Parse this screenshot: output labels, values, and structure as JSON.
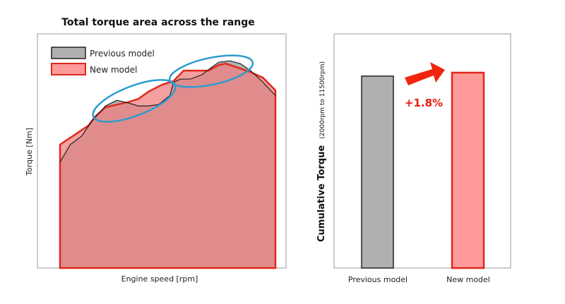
{
  "chart_data": [
    {
      "type": "area",
      "title": "Total torque area across the range",
      "xlabel": "Engine speed [rpm]",
      "ylabel": "Torque [Nm]",
      "xlim": [
        2000,
        11500
      ],
      "ylim": [
        0,
        100
      ],
      "grid": false,
      "legend_position": "top-left",
      "series": [
        {
          "name": "Previous model",
          "color": "#b0b0b0",
          "stroke": "#222222",
          "x": [
            2000,
            2450,
            2950,
            3400,
            4000,
            4500,
            4950,
            5450,
            5900,
            6350,
            6850,
            7000,
            7300,
            7750,
            8250,
            8700,
            9000,
            9500,
            9950,
            10400,
            10900,
            11500
          ],
          "y": [
            45.2,
            52.7,
            56.3,
            62.6,
            69.2,
            71.6,
            70.7,
            69.2,
            69.2,
            69.8,
            73.7,
            79.2,
            80.7,
            80.7,
            82.5,
            85.8,
            87.9,
            88.5,
            87.3,
            84.3,
            79.8,
            73.7
          ]
        },
        {
          "name": "New model",
          "color": "#f08080",
          "stroke": "#e0281c",
          "x": [
            2000,
            2550,
            3250,
            3550,
            4000,
            4500,
            4950,
            5450,
            5900,
            6500,
            7000,
            7450,
            8050,
            8550,
            9000,
            9300,
            9950,
            10400,
            10950,
            11500
          ],
          "y": [
            52.7,
            56.3,
            60.8,
            64.7,
            68.6,
            69.8,
            70.7,
            72.2,
            75.3,
            78.3,
            79.8,
            84.3,
            84.3,
            84.3,
            86.7,
            87.3,
            85.2,
            83.7,
            81.3,
            75.9
          ]
        }
      ],
      "annotations": [
        "highlight ellipse low-mid range",
        "highlight ellipse high range"
      ]
    },
    {
      "type": "bar",
      "ylabel": "Cumulative Torque",
      "ylabel_note": "(2000rpm to 11500rpm)",
      "categories": [
        "Previous model",
        "New model"
      ],
      "values": [
        100,
        101.8
      ],
      "colors": [
        "#b0b0b0",
        "#ff9a9a"
      ],
      "strokes": [
        "#222222",
        "#e0281c"
      ],
      "ylim": [
        0,
        122
      ],
      "annotation": "+1.8%",
      "annotation_color": "#e8190e"
    }
  ]
}
